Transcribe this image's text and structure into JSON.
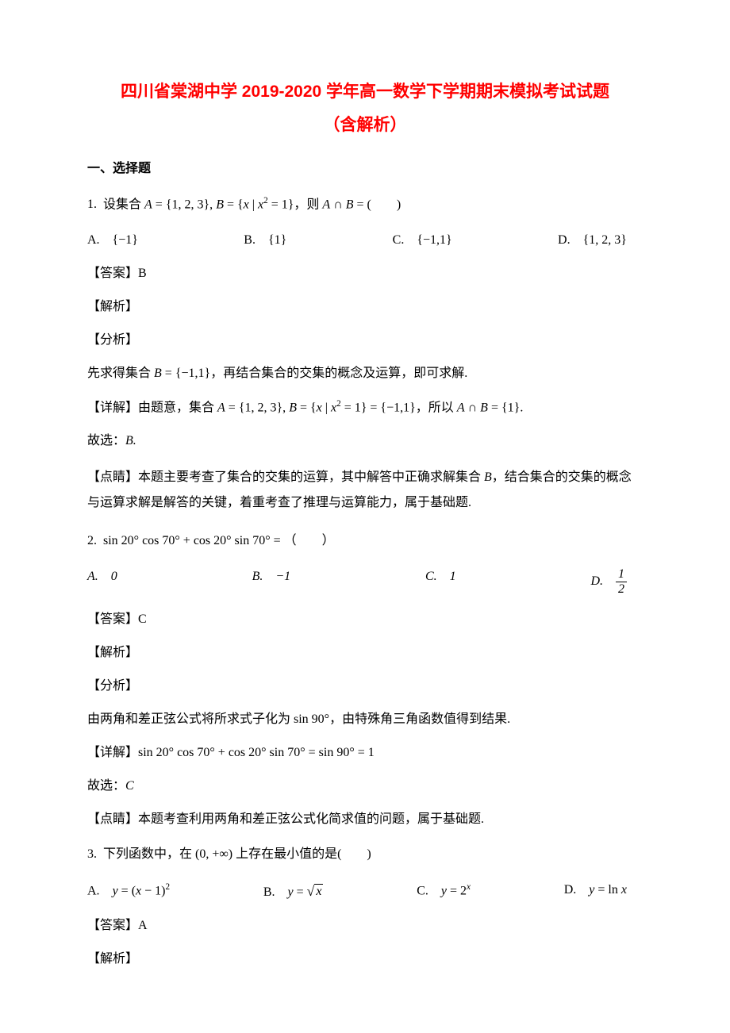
{
  "title": "四川省棠湖中学 2019-2020 学年高一数学下学期期末模拟考试试题",
  "subtitle": "（含解析）",
  "section_heading": "一、选择题",
  "q1": {
    "stem": "1. 设集合 A = {1, 2, 3}, B = { x | x² = 1 }，则 A ∩ B = (　　)",
    "a": "A.　{−1}",
    "b": "B.　{1}",
    "c": "C.　{−1, 1}",
    "d": "D.　{1, 2, 3}",
    "answer": "【答案】B",
    "jiexi": "【解析】",
    "fenxi": "【分析】",
    "fenxi_text": "先求得集合 B = {−1, 1}，再结合集合的交集的概念及运算，即可求解.",
    "xiangjie": "【详解】由题意，集合 A = {1, 2, 3}, B = { x | x² = 1 } = {−1, 1}，所以 A ∩ B = {1}.",
    "guxuan": "故选：B.",
    "dianjing": "【点睛】本题主要考查了集合的交集的运算，其中解答中正确求解集合 B，结合集合的交集的概念与运算求解是解答的关键，着重考查了推理与运算能力，属于基础题."
  },
  "q2": {
    "stem": "2. sin 20° cos 70° + cos 20° sin 70° = （　　）",
    "a": "A.　0",
    "b": "B.　−1",
    "c": "C.　1",
    "d_prefix": "D.　",
    "d_num": "1",
    "d_den": "2",
    "answer": "【答案】C",
    "jiexi": "【解析】",
    "fenxi": "【分析】",
    "fenxi_text": "由两角和差正弦公式将所求式子化为 sin 90°，由特殊角三角函数值得到结果.",
    "xiangjie": "【详解】sin 20° cos 70° + cos 20° sin 70° = sin 90° = 1",
    "guxuan": "故选：C",
    "dianjing": "【点睛】本题考查利用两角和差正弦公式化简求值的问题，属于基础题."
  },
  "q3": {
    "stem": "3. 下列函数中，在 (0, +∞) 上存在最小值的是(　　)",
    "a": "A.　y = (x − 1)²",
    "b_prefix": "B.　y = ",
    "b_sqrt": "x",
    "c": "C.　y = 2ˣ",
    "d": "D.　y = ln x",
    "answer": "【答案】A",
    "jiexi": "【解析】"
  }
}
